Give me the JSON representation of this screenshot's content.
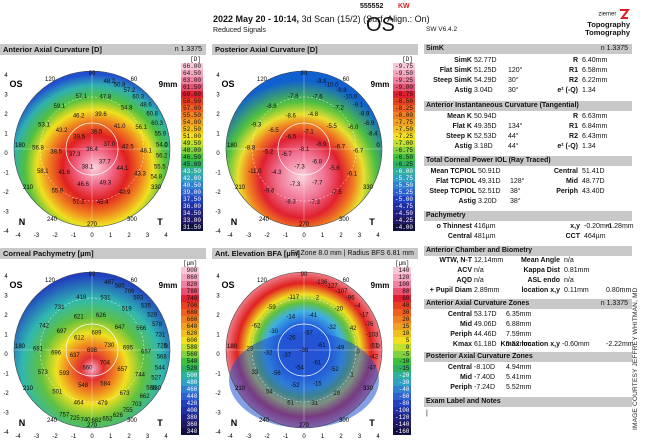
{
  "header": {
    "exam_id": "555552",
    "eye_tag": "KW",
    "date_line": "2022 May 20 - 10:14,",
    "scan_info": "3d Scan (15/2) (Surf. Align.: On)",
    "reduced": "Reduced Signals",
    "eye": "OS",
    "software": "SW V6.4.2",
    "brand_top": "ziemer",
    "brand_line1": "Topography",
    "brand_line2": "Tomography"
  },
  "panels": {
    "ant_axial": {
      "title": "Anterior Axial Curvature  [D]",
      "right": "n 1.3375"
    },
    "post_axial": {
      "title": "Posterior Axial Curvature  [D]",
      "right": ""
    },
    "pachy": {
      "title": "Corneal Pachymetry  [µm]",
      "right": ""
    },
    "elev": {
      "title": "Ant. Elevation BFA  [µm]",
      "right": "Fit Zone 8.0 mm | Radius BFS 6.81 mm"
    }
  },
  "map_labels": {
    "os": "OS",
    "zone": "9mm",
    "n": "N",
    "t": "T",
    "deg_top": "90",
    "deg_tl": "120",
    "deg_tr": "60",
    "deg_l": "180",
    "deg_r": "0",
    "deg_bl": "240",
    "deg_br": "300",
    "deg_bot": "270",
    "deg_bl2": "210",
    "deg_br2": "330",
    "xticks": [
      "-4",
      "-3",
      "-2",
      "-1",
      "0",
      "1",
      "2",
      "3",
      "4"
    ],
    "yticks": [
      "4",
      "3",
      "2",
      "1",
      "0",
      "-1",
      "-2",
      "-3",
      "-4"
    ]
  },
  "scales": {
    "ant_axial": [
      "[D]",
      "66.00",
      "64.50",
      "63.00",
      "61.50",
      "60.00",
      "58.50",
      "57.00",
      "55.50",
      "54.00",
      "52.50",
      "51.00",
      "49.50",
      "48.00",
      "46.50",
      "45.00",
      "43.50",
      "42.00",
      "40.50",
      "39.00",
      "37.50",
      "36.00",
      "34.50",
      "33.00",
      "31.50",
      "30.00"
    ],
    "post_axial": [
      "[D]",
      "-9.75",
      "-9.50",
      "-9.25",
      "-9.00",
      "-8.75",
      "-8.50",
      "-8.25",
      "-8.00",
      "-7.75",
      "-7.50",
      "-7.25",
      "-7.00",
      "-6.75",
      "-6.50",
      "-6.25",
      "-6.00",
      "-5.75",
      "-5.50",
      "-5.25",
      "-5.00",
      "-4.75",
      "-4.50",
      "-4.25",
      "-4.00",
      "-3.75"
    ],
    "pachy": [
      "[µm]",
      "900",
      "860",
      "820",
      "780",
      "740",
      "700",
      "680",
      "660",
      "640",
      "620",
      "600",
      "580",
      "560",
      "540",
      "520",
      "500",
      "480",
      "460",
      "440",
      "420",
      "400",
      "380",
      "360",
      "340",
      "320"
    ],
    "elev": [
      "[µm]",
      "140",
      "120",
      "100",
      "80",
      "60",
      "40",
      "30",
      "20",
      "15",
      "10",
      "5",
      "0",
      "-5",
      "-10",
      "-15",
      "-20",
      "-30",
      "-40",
      "-60",
      "-80",
      "-100",
      "-120",
      "-140",
      "-160",
      "-180"
    ]
  },
  "map_values": {
    "ant_axial": [
      "36.4",
      "36.5",
      "37.0",
      "37.7",
      "38.1",
      "37.3",
      "39.5",
      "39.6",
      "41.0",
      "42.5",
      "44.1",
      "49.3",
      "46.6",
      "41.6",
      "38.5",
      "43.2",
      "46.2",
      "47.8",
      "54.8",
      "56.1",
      "48.1",
      "43.3",
      "40.9",
      "45.4",
      "51.2",
      "55.9",
      "58.1",
      "56.8",
      "53.1",
      "59.1",
      "57.1",
      "48.2",
      "50.8",
      "57.2",
      "60.3",
      "48.6",
      "60.8",
      "60.3",
      "55.9",
      "54.0",
      "56.2",
      "55.5",
      "54.8"
    ],
    "post_axial": [
      "-8.1",
      "-7.1",
      "-6.9",
      "-6.8",
      "-7.3",
      "-6.7",
      "-6.5",
      "-4.8",
      "-5.5",
      "-6.7",
      "-5.6",
      "-7.7",
      "-7.3",
      "-4.3",
      "-5.2",
      "-6.5",
      "-8.6",
      "-7.6",
      "-7.2",
      "-6.0",
      "-6.7",
      "-6.1",
      "-7.5",
      "-7.3",
      "-8.3",
      "-9.6",
      "-11.0",
      "-8.8",
      "-9.3",
      "-8.8",
      "-7.8",
      "-9.8",
      "-10.0",
      "-9.8",
      "-10.0",
      "-9.1",
      "-8.9",
      "-6.9",
      "-8.4"
    ],
    "pachy": [
      "698",
      "689",
      "730",
      "704",
      "660",
      "637",
      "612",
      "626",
      "647",
      "695",
      "657",
      "584",
      "548",
      "593",
      "696",
      "697",
      "621",
      "531",
      "519",
      "566",
      "657",
      "744",
      "673",
      "479",
      "464",
      "501",
      "573",
      "681",
      "742",
      "731",
      "418",
      "467",
      "585",
      "706",
      "593",
      "535",
      "528",
      "578",
      "731",
      "725",
      "568",
      "544",
      "527",
      "588",
      "662",
      "703",
      "755",
      "626",
      "652",
      "682",
      "740",
      "725",
      "757"
    ],
    "elev": [
      "-36",
      "-57",
      "-61",
      "-61",
      "-54",
      "-37",
      "-26",
      "-41",
      "-32",
      "-49",
      "-52",
      "-15",
      "-52",
      "-56",
      "-32",
      "-30",
      "-14",
      "2",
      "-20",
      "42",
      "0",
      "1",
      "19",
      "31",
      "61",
      "54",
      "33",
      "23",
      "-62",
      "-59",
      "-117",
      "-136",
      "-127",
      "-107",
      "-96",
      "-4",
      "-17",
      "-76",
      "-103",
      "-51",
      "-42",
      "-47"
    ]
  },
  "simk": {
    "title": "SimK",
    "n": "n 1.3375",
    "rows": [
      {
        "k": "SimK",
        "v": "52.77D",
        "a": "",
        "rk": "R",
        "rv": "6.40mm"
      },
      {
        "k": "Flat SimK",
        "v": "51.25D",
        "a": "120°",
        "rk": "R1",
        "rv": "6.58mm"
      },
      {
        "k": "Steep SimK",
        "v": "54.29D",
        "a": "30°",
        "rk": "R2",
        "rv": "6.22mm"
      },
      {
        "k": "Astig",
        "v": "3.04D",
        "a": "30°",
        "rk": "e² (-Q)",
        "rv": "1.34"
      }
    ]
  },
  "tangential": {
    "title": "Anterior Instantaneous Curvature (Tangential)",
    "rows": [
      {
        "k": "Mean K",
        "v": "50.94D",
        "a": "",
        "rk": "R",
        "rv": "6.63mm"
      },
      {
        "k": "Flat K",
        "v": "49.35D",
        "a": "134°",
        "rk": "R1",
        "rv": "6.84mm"
      },
      {
        "k": "Steep K",
        "v": "52.53D",
        "a": "44°",
        "rk": "R2",
        "rv": "6.43mm"
      },
      {
        "k": "Astig",
        "v": "3.18D",
        "a": "44°",
        "rk": "e² (-Q)",
        "rv": "1.34"
      }
    ]
  },
  "tcpiol": {
    "title": "Total Corneal Power IOL (Ray Traced)",
    "rows": [
      {
        "k": "Mean TCPIOL",
        "v": "50.91D",
        "a": "",
        "rk": "Central",
        "rv": "51.41D"
      },
      {
        "k": "Flat TCPIOL",
        "v": "49.31D",
        "a": "128°",
        "rk": "Mid",
        "rv": "48.77D"
      },
      {
        "k": "Steep TCPIOL",
        "v": "52.51D",
        "a": "38°",
        "rk": "Periph",
        "rv": "43.40D"
      },
      {
        "k": "Astig",
        "v": "3.20D",
        "a": "38°",
        "rk": "",
        "rv": ""
      }
    ]
  },
  "pachymetry": {
    "title": "Pachymetry",
    "rows": [
      {
        "k": "o Thinnest",
        "v": "416µm",
        "rk": "x,y",
        "rv": "-0.20mm",
        "rv2": "-1.28mm"
      },
      {
        "k": "Central",
        "v": "481µm",
        "rk": "CCT",
        "rv": "464µm",
        "rv2": ""
      }
    ]
  },
  "chamber": {
    "title": "Anterior Chamber and Biometry",
    "rows": [
      {
        "k": "WTW, N-T",
        "v": "12.14mm",
        "rk": "Mean Angle",
        "rv": "n/a",
        "rv2": ""
      },
      {
        "k": "ACV",
        "v": "n/a",
        "rk": "Kappa Dist",
        "rv": "0.81mm",
        "rv2": ""
      },
      {
        "k": "AQD",
        "v": "n/a",
        "rk": "ASL endo",
        "rv": "n/a",
        "rv2": ""
      },
      {
        "k": "+ Pupil Diam",
        "v": "2.89mm",
        "rk": "location x,y",
        "rv": "0.11mm",
        "rv2": "0.80mm"
      }
    ]
  },
  "ant_zones": {
    "title": "Anterior Axial Curvature Zones",
    "n": "n 1.3375",
    "rows": [
      {
        "k": "Central",
        "v": "53.17D",
        "v2": "6.35mm",
        "rk": "",
        "rv": "",
        "rv2": ""
      },
      {
        "k": "Mid",
        "v": "49.06D",
        "v2": "6.88mm",
        "rk": "",
        "rv": "",
        "rv2": ""
      },
      {
        "k": "Periph",
        "v": "44.46D",
        "v2": "7.59mm",
        "rk": "",
        "rv": "",
        "rv2": ""
      },
      {
        "k": "Kmax",
        "v": "61.18D",
        "v2": "5.52mm",
        "rk": "Kmax location x,y",
        "rv": "-0.60mm",
        "rv2": "-2.22mm"
      }
    ]
  },
  "post_zones": {
    "title": "Posterior Axial Curvature Zones",
    "rows": [
      {
        "k": "Central",
        "v": "-8.10D",
        "v2": "4.94mm"
      },
      {
        "k": "Mid",
        "v": "-7.40D",
        "v2": "5.41mm"
      },
      {
        "k": "Periph",
        "v": "-7.24D",
        "v2": "5.52mm"
      }
    ]
  },
  "notes": {
    "title": "Exam Label and Notes",
    "body": "|"
  },
  "credit": "IMAGE COURTESY JEFFREY WHITMAN, MD",
  "colors": {
    "header_gray": "#c8c8c8",
    "brand_red": "#e02020"
  }
}
